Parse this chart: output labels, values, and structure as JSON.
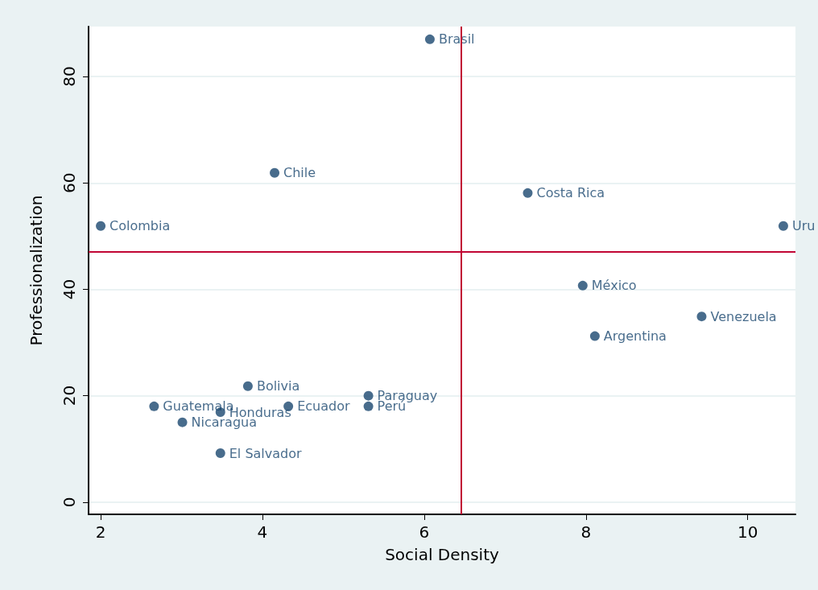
{
  "chart_data": {
    "type": "scatter",
    "xlabel": "Social Density",
    "ylabel": "Professionalization",
    "xlim": [
      1.85,
      10.59
    ],
    "ylim": [
      -2.3,
      89.4
    ],
    "xticks": [
      2,
      4,
      6,
      8,
      10
    ],
    "yticks": [
      0,
      20,
      40,
      60,
      80
    ],
    "grid": "y",
    "legend": false,
    "marker": "circle",
    "series": [
      {
        "name": "Brasil",
        "color": "#1a476f",
        "x": [
          6.07
        ],
        "values": [
          87.0
        ]
      },
      {
        "name": "Chile",
        "color": "#1a476f",
        "x": [
          4.15
        ],
        "values": [
          61.9
        ]
      },
      {
        "name": "Costa Rica",
        "color": "#1a476f",
        "x": [
          7.28
        ],
        "values": [
          58.1
        ]
      },
      {
        "name": "Colombia",
        "color": "#1a476f",
        "x": [
          2.0
        ],
        "values": [
          51.9
        ]
      },
      {
        "name": "Uru",
        "color": "#1a476f",
        "x": [
          10.44
        ],
        "values": [
          51.9
        ]
      },
      {
        "name": "México",
        "color": "#1a476f",
        "x": [
          7.96
        ],
        "values": [
          40.7
        ]
      },
      {
        "name": "Venezuela",
        "color": "#1a476f",
        "x": [
          9.43
        ],
        "values": [
          34.9
        ]
      },
      {
        "name": "Argentina",
        "color": "#1a476f",
        "x": [
          8.11
        ],
        "values": [
          31.2
        ]
      },
      {
        "name": "Bolivia",
        "color": "#1a476f",
        "x": [
          3.82
        ],
        "values": [
          21.8
        ]
      },
      {
        "name": "Paraguay",
        "color": "#1a476f",
        "x": [
          5.31
        ],
        "values": [
          20.0
        ]
      },
      {
        "name": "Perú",
        "color": "#1a476f",
        "x": [
          5.31
        ],
        "values": [
          18.0
        ]
      },
      {
        "name": "Ecuador",
        "color": "#1a476f",
        "x": [
          4.32
        ],
        "values": [
          18.0
        ]
      },
      {
        "name": "Guatemala",
        "color": "#1a476f",
        "x": [
          2.66
        ],
        "values": [
          18.0
        ]
      },
      {
        "name": "Honduras",
        "color": "#1a476f",
        "x": [
          3.48
        ],
        "values": [
          16.9
        ]
      },
      {
        "name": "Nicaragua",
        "color": "#1a476f",
        "x": [
          3.01
        ],
        "values": [
          15.0
        ]
      },
      {
        "name": "El Salvador",
        "color": "#1a476f",
        "x": [
          3.48
        ],
        "values": [
          9.2
        ]
      }
    ],
    "ref_lines": [
      {
        "axis": "x",
        "value": 6.46,
        "color": "#c10534"
      },
      {
        "axis": "y",
        "value": 47.0,
        "color": "#c10534"
      }
    ]
  }
}
